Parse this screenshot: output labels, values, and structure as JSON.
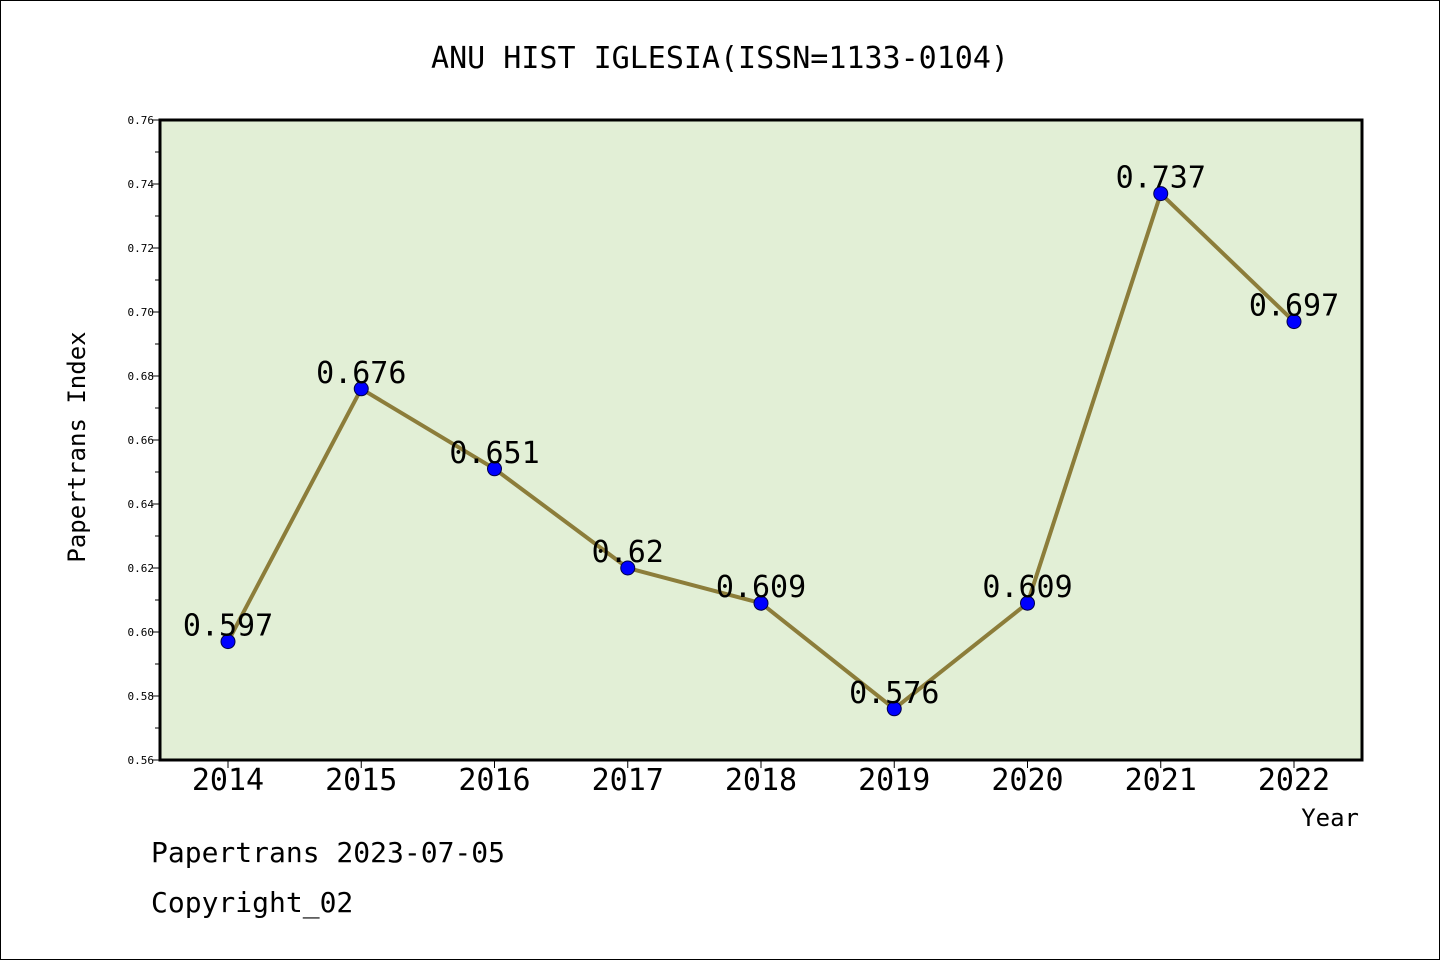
{
  "chart_data": {
    "type": "line",
    "title": "ANU HIST IGLESIA(ISSN=1133-0104)",
    "xlabel": "Year",
    "ylabel": "Papertrans Index",
    "categories": [
      "2014",
      "2015",
      "2016",
      "2017",
      "2018",
      "2019",
      "2020",
      "2021",
      "2022"
    ],
    "values": [
      0.597,
      0.676,
      0.651,
      0.62,
      0.609,
      0.576,
      0.609,
      0.737,
      0.697
    ],
    "data_labels": [
      "0.597",
      "0.676",
      "0.651",
      "0.62",
      "0.609",
      "0.576",
      "0.609",
      "0.737",
      "0.697"
    ],
    "ylim": [
      0.56,
      0.76
    ],
    "yticks": [
      "0.56",
      "0.58",
      "0.60",
      "0.62",
      "0.64",
      "0.66",
      "0.68",
      "0.70",
      "0.72",
      "0.74",
      "0.76"
    ],
    "grid": false,
    "colors": {
      "plot_background": "#e2efd6",
      "line": "#8c7d3a",
      "marker": "#0000ff"
    }
  },
  "footer": {
    "source": "Papertrans 2023-07-05",
    "copyright": "Copyright_02"
  }
}
